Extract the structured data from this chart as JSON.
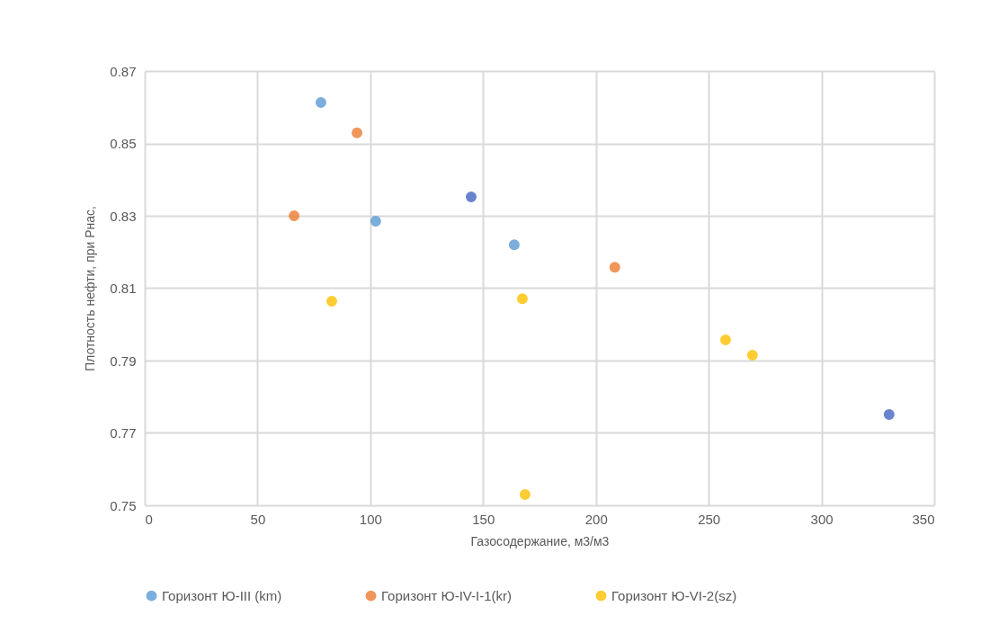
{
  "chart_data": {
    "type": "scatter",
    "xlabel": "Газосодержание, м3/м3",
    "ylabel": "Плотность нефти,  при  Pнас,",
    "series": [
      {
        "name": "Горизонт Ю-III (km)",
        "color": "#5b9bd5",
        "x": [
          78.1,
          102.4,
          163.8
        ],
        "values": [
          0.8613,
          0.8285,
          0.822
        ]
      },
      {
        "name": "Горизонт Ю-IV-I-1(kr)",
        "color": "#ed7d31",
        "x": [
          66.2,
          94.1,
          208.4
        ],
        "values": [
          0.83,
          0.8529,
          0.8158
        ]
      },
      {
        "name": "Горизонт Ю-VI-2(sz)",
        "color": "#ffc000",
        "x": [
          82.9,
          167.4,
          168.6,
          257.5,
          269.4
        ],
        "values": [
          0.8064,
          0.8071,
          0.753,
          0.7957,
          0.7915
        ]
      },
      {
        "color": "#4466c4",
        "x": [
          144.7,
          330
        ],
        "values": [
          0.8352,
          0.7751
        ]
      }
    ],
    "xlim": [
      0,
      350
    ],
    "xticks": [
      0,
      50,
      100,
      150,
      200,
      250,
      300,
      350
    ],
    "ylim": [
      0.75,
      0.87
    ],
    "yticks": [
      0.75,
      0.77,
      0.79,
      0.81,
      0.83,
      0.85,
      0.87
    ],
    "grid": true,
    "legend": "bottom",
    "marker": "circle"
  }
}
